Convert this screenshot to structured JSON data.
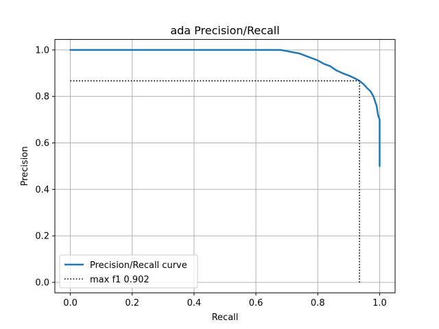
{
  "chart_data": {
    "type": "line",
    "title": "ada Precision/Recall",
    "xlabel": "Recall",
    "ylabel": "Precision",
    "xlim": [
      -0.05,
      1.05
    ],
    "ylim": [
      -0.045,
      1.045
    ],
    "xticks": [
      0.0,
      0.2,
      0.4,
      0.6,
      0.8,
      1.0
    ],
    "xtick_labels": [
      "0.0",
      "0.2",
      "0.4",
      "0.6",
      "0.8",
      "1.0"
    ],
    "yticks": [
      0.0,
      0.2,
      0.4,
      0.6,
      0.8,
      1.0
    ],
    "ytick_labels": [
      "0.0",
      "0.2",
      "0.4",
      "0.6",
      "0.8",
      "1.0"
    ],
    "grid": true,
    "legend_position": "lower-left",
    "series": [
      {
        "name": "Precision/Recall curve",
        "style": "solid",
        "color": "#1f77b4",
        "x": [
          0.0,
          0.1,
          0.2,
          0.3,
          0.4,
          0.5,
          0.6,
          0.68,
          0.7,
          0.72,
          0.74,
          0.76,
          0.78,
          0.8,
          0.82,
          0.84,
          0.86,
          0.88,
          0.9,
          0.92,
          0.935,
          0.95,
          0.96,
          0.97,
          0.98,
          0.99,
          0.995,
          1.0,
          1.0
        ],
        "y": [
          1.0,
          1.0,
          1.0,
          1.0,
          1.0,
          1.0,
          1.0,
          1.0,
          0.995,
          0.99,
          0.985,
          0.975,
          0.965,
          0.955,
          0.94,
          0.93,
          0.912,
          0.9,
          0.89,
          0.878,
          0.867,
          0.85,
          0.835,
          0.823,
          0.8,
          0.76,
          0.72,
          0.7,
          0.5
        ]
      },
      {
        "name": "max f1 0.902",
        "style": "dotted",
        "color": "#000000",
        "x": [
          0.0,
          0.935,
          0.935
        ],
        "y": [
          0.867,
          0.867,
          0.0
        ]
      }
    ]
  }
}
